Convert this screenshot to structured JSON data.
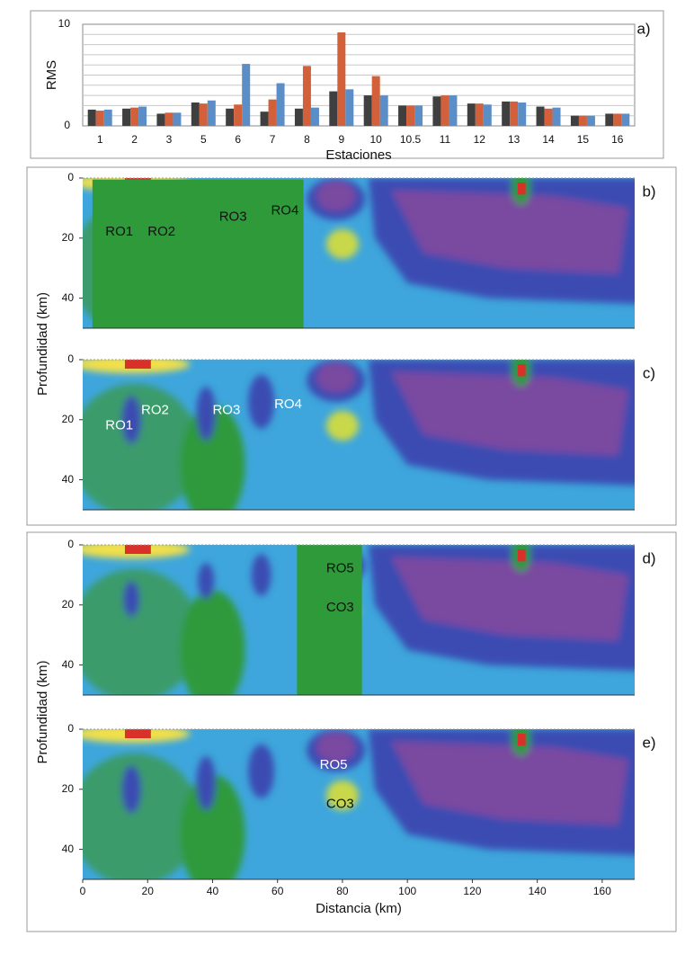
{
  "chart_data": [
    {
      "type": "bar",
      "panel": "a)",
      "ylabel": "RMS",
      "xlabel": "Estaciones",
      "categories": [
        "1",
        "2",
        "3",
        "5",
        "6",
        "7",
        "8",
        "9",
        "10",
        "10.5",
        "11",
        "12",
        "13",
        "14",
        "15",
        "16"
      ],
      "series": [
        {
          "color": "#3f3f3f",
          "values": [
            1.6,
            1.7,
            1.2,
            2.3,
            1.7,
            1.4,
            1.7,
            3.4,
            3.0,
            2.0,
            2.9,
            2.2,
            2.4,
            1.9,
            1.0,
            1.2
          ]
        },
        {
          "color": "#d2603a",
          "values": [
            1.5,
            1.8,
            1.3,
            2.2,
            2.1,
            2.6,
            5.9,
            9.2,
            4.9,
            2.0,
            3.0,
            2.2,
            2.4,
            1.7,
            1.0,
            1.2
          ]
        },
        {
          "color": "#5b8ec7",
          "values": [
            1.6,
            1.9,
            1.3,
            2.5,
            6.1,
            4.2,
            1.8,
            3.6,
            3.0,
            2.0,
            3.0,
            2.1,
            2.3,
            1.8,
            1.0,
            1.2
          ]
        }
      ],
      "ylim": [
        0,
        10
      ],
      "yticks": [
        0,
        10
      ],
      "minor_yticks": [
        1,
        2,
        3,
        4,
        5,
        6,
        7,
        8,
        9
      ],
      "grid": true
    },
    {
      "type": "section",
      "panel": "b)",
      "ylabel": "Profundidad (km)",
      "xlim": [
        0,
        170
      ],
      "ylim": [
        0,
        50
      ],
      "yticks": [
        0,
        20,
        40
      ],
      "annotations": [
        {
          "text": "RO1",
          "x": 7,
          "y": 18
        },
        {
          "text": "RO2",
          "x": 20,
          "y": 18
        },
        {
          "text": "RO3",
          "x": 42,
          "y": 13
        },
        {
          "text": "RO4",
          "x": 58,
          "y": 11
        }
      ]
    },
    {
      "type": "section",
      "panel": "c)",
      "xlim": [
        0,
        170
      ],
      "ylim": [
        0,
        50
      ],
      "yticks": [
        0,
        20,
        40
      ],
      "annotations": [
        {
          "text": "RO1",
          "x": 7,
          "y": 22
        },
        {
          "text": "RO2",
          "x": 18,
          "y": 17
        },
        {
          "text": "RO3",
          "x": 40,
          "y": 17
        },
        {
          "text": "RO4",
          "x": 59,
          "y": 15
        }
      ]
    },
    {
      "type": "section",
      "panel": "d)",
      "ylabel": "Profundidad (km)",
      "xlim": [
        0,
        170
      ],
      "ylim": [
        0,
        50
      ],
      "yticks": [
        0,
        20,
        40
      ],
      "annotations": [
        {
          "text": "RO5",
          "x": 75,
          "y": 8
        },
        {
          "text": "CO3",
          "x": 75,
          "y": 21
        }
      ]
    },
    {
      "type": "section",
      "panel": "e)",
      "xlabel": "Distancia (km)",
      "xlim": [
        0,
        170
      ],
      "ylim": [
        0,
        50
      ],
      "yticks": [
        0,
        20,
        40
      ],
      "xticks": [
        0,
        20,
        40,
        60,
        80,
        100,
        120,
        140,
        160
      ],
      "annotations": [
        {
          "text": "RO5",
          "x": 73,
          "y": 12
        },
        {
          "text": "CO3",
          "x": 75,
          "y": 25
        }
      ]
    }
  ]
}
